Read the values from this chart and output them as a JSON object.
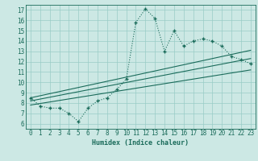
{
  "title": "",
  "xlabel": "Humidex (Indice chaleur)",
  "ylabel": "",
  "bg_color": "#cce8e4",
  "line_color": "#1a6b5a",
  "grid_color": "#99ccc6",
  "xlim": [
    -0.5,
    23.5
  ],
  "ylim": [
    5.5,
    17.5
  ],
  "xticks": [
    0,
    1,
    2,
    3,
    4,
    5,
    6,
    7,
    8,
    9,
    10,
    11,
    12,
    13,
    14,
    15,
    16,
    17,
    18,
    19,
    20,
    21,
    22,
    23
  ],
  "yticks": [
    6,
    7,
    8,
    9,
    10,
    11,
    12,
    13,
    14,
    15,
    16,
    17
  ],
  "main_x": [
    0,
    1,
    2,
    3,
    4,
    5,
    6,
    7,
    8,
    9,
    10,
    11,
    12,
    13,
    14,
    15,
    16,
    17,
    18,
    19,
    20,
    21,
    22,
    23
  ],
  "main_y": [
    8.5,
    7.7,
    7.5,
    7.5,
    7.0,
    6.2,
    7.5,
    8.2,
    8.5,
    9.3,
    10.3,
    15.8,
    17.1,
    16.2,
    13.0,
    15.0,
    13.5,
    14.0,
    14.2,
    14.0,
    13.5,
    12.5,
    12.2,
    11.8
  ],
  "trend1_x": [
    0,
    23
  ],
  "trend1_y": [
    7.8,
    11.2
  ],
  "trend2_x": [
    0,
    23
  ],
  "trend2_y": [
    8.2,
    12.3
  ],
  "trend3_x": [
    0,
    23
  ],
  "trend3_y": [
    8.5,
    13.1
  ]
}
